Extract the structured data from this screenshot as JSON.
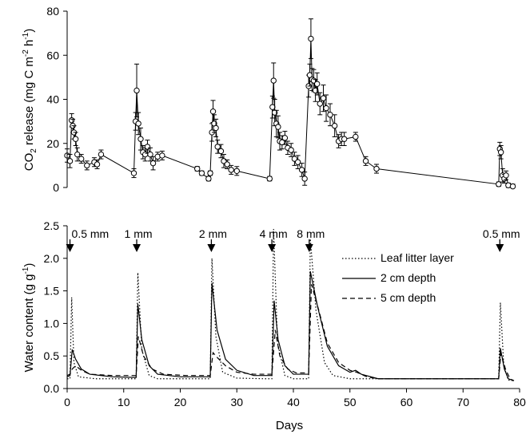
{
  "chart_data": [
    {
      "type": "line",
      "ylabel_main": "CO",
      "ylabel_sub": "2",
      "ylabel_rest": " release (mg C m",
      "ylabel_sup1": "-2",
      "ylabel_h": " h",
      "ylabel_sup2": "-1",
      "ylabel_close": ")",
      "xlim": [
        0,
        80
      ],
      "ylim": [
        0,
        80
      ],
      "yticks": [
        "0",
        "20",
        "40",
        "60",
        "80"
      ],
      "series": [
        {
          "marker": "open-circle",
          "points": [
            [
              0.0,
              14.5,
              3
            ],
            [
              0.5,
              12.0,
              3
            ],
            [
              0.8,
              30.5,
              3
            ],
            [
              1.0,
              28.0,
              3
            ],
            [
              1.2,
              25.0,
              3
            ],
            [
              1.5,
              22.0,
              3
            ],
            [
              1.8,
              15.0,
              3
            ],
            [
              2.5,
              13.0,
              2
            ],
            [
              3.5,
              10.0,
              2
            ],
            [
              4.8,
              11.5,
              2
            ],
            [
              5.3,
              10.5,
              2
            ],
            [
              6.0,
              15.0,
              2
            ],
            [
              11.8,
              6.5,
              2
            ],
            [
              12.1,
              30.0,
              4
            ],
            [
              12.3,
              44.0,
              12
            ],
            [
              12.6,
              29.0,
              5
            ],
            [
              13.0,
              22.0,
              5
            ],
            [
              13.4,
              16.0,
              3
            ],
            [
              13.8,
              15.0,
              3
            ],
            [
              14.2,
              18.5,
              3
            ],
            [
              14.7,
              15.0,
              3
            ],
            [
              15.2,
              11.0,
              3
            ],
            [
              16.0,
              14.0,
              2
            ],
            [
              16.8,
              14.5,
              2
            ],
            [
              23.0,
              8.5,
              1
            ],
            [
              23.8,
              6.5,
              1
            ],
            [
              25.0,
              4.0,
              1
            ],
            [
              25.3,
              6.5,
              1
            ],
            [
              25.6,
              25.0,
              4
            ],
            [
              25.8,
              34.5,
              5
            ],
            [
              26.0,
              29.0,
              4
            ],
            [
              26.3,
              27.0,
              4
            ],
            [
              26.6,
              18.5,
              3
            ],
            [
              27.2,
              16.5,
              3
            ],
            [
              27.7,
              12.0,
              3
            ],
            [
              28.3,
              10.5,
              2
            ],
            [
              29.0,
              8.0,
              2
            ],
            [
              30.0,
              7.5,
              2
            ],
            [
              35.8,
              4.0,
              1
            ],
            [
              36.3,
              36.5,
              5
            ],
            [
              36.5,
              48.5,
              8
            ],
            [
              36.7,
              34.0,
              6
            ],
            [
              37.0,
              29.0,
              6
            ],
            [
              37.3,
              27.5,
              5
            ],
            [
              37.6,
              21.0,
              4
            ],
            [
              38.0,
              20.5,
              3
            ],
            [
              38.5,
              22.5,
              3
            ],
            [
              39.0,
              18.0,
              3
            ],
            [
              39.6,
              17.0,
              3
            ],
            [
              40.2,
              13.0,
              3
            ],
            [
              40.8,
              11.5,
              3
            ],
            [
              41.5,
              8.0,
              3
            ],
            [
              42.0,
              4.0,
              3
            ],
            [
              42.7,
              46.0,
              5
            ],
            [
              42.9,
              51.0,
              5
            ],
            [
              43.1,
              67.5,
              9
            ],
            [
              43.3,
              49.0,
              5
            ],
            [
              43.6,
              48.5,
              5
            ],
            [
              43.9,
              44.0,
              5
            ],
            [
              44.2,
              47.0,
              5
            ],
            [
              44.7,
              38.0,
              5
            ],
            [
              45.3,
              40.5,
              6
            ],
            [
              45.8,
              36.0,
              6
            ],
            [
              46.5,
              33.0,
              5
            ],
            [
              47.3,
              28.0,
              5
            ],
            [
              48.0,
              21.0,
              3
            ],
            [
              48.5,
              22.0,
              3
            ],
            [
              49.0,
              22.0,
              3
            ],
            [
              51.0,
              23.0,
              2
            ],
            [
              52.8,
              12.0,
              2
            ],
            [
              54.7,
              8.5,
              2
            ],
            [
              76.3,
              1.5,
              1
            ],
            [
              76.5,
              17.5,
              3
            ],
            [
              76.7,
              16.0,
              3
            ],
            [
              77.0,
              5.5,
              3
            ],
            [
              77.3,
              4.0,
              2
            ],
            [
              77.6,
              5.5,
              2
            ],
            [
              78.0,
              1.0,
              1
            ],
            [
              78.8,
              0.5,
              1
            ]
          ]
        }
      ]
    },
    {
      "type": "line",
      "ylabel_main": "Water content (g g",
      "ylabel_sup": "-1",
      "ylabel_close": ")",
      "xlabel": "Days",
      "xlim": [
        0,
        80
      ],
      "ylim": [
        0,
        2.5
      ],
      "xticks": [
        "0",
        "10",
        "20",
        "30",
        "40",
        "50",
        "60",
        "70",
        "80"
      ],
      "yticks": [
        "0.0",
        "0.5",
        "1.0",
        "1.5",
        "2.0",
        "2.5"
      ],
      "legend_position": "right",
      "series": [
        {
          "name": "Leaf litter layer",
          "style": "dotted",
          "points": [
            [
              0,
              0.15
            ],
            [
              0.5,
              0.15
            ],
            [
              0.8,
              1.4
            ],
            [
              1.2,
              0.4
            ],
            [
              2.0,
              0.18
            ],
            [
              5,
              0.15
            ],
            [
              10,
              0.15
            ],
            [
              12.2,
              0.15
            ],
            [
              12.5,
              1.78
            ],
            [
              13.2,
              0.6
            ],
            [
              14.5,
              0.2
            ],
            [
              16,
              0.15
            ],
            [
              25.3,
              0.15
            ],
            [
              25.6,
              2.0
            ],
            [
              26.3,
              0.8
            ],
            [
              27.5,
              0.25
            ],
            [
              30,
              0.16
            ],
            [
              35,
              0.15
            ],
            [
              36.2,
              0.15
            ],
            [
              36.5,
              2.45
            ],
            [
              37.2,
              0.7
            ],
            [
              38.5,
              0.2
            ],
            [
              40,
              0.15
            ],
            [
              42.7,
              0.15
            ],
            [
              43.0,
              2.3
            ],
            [
              44.0,
              1.2
            ],
            [
              45.5,
              0.4
            ],
            [
              47,
              0.2
            ],
            [
              50,
              0.15
            ],
            [
              76.3,
              0.15
            ],
            [
              76.6,
              1.32
            ],
            [
              77.2,
              0.35
            ],
            [
              78,
              0.13
            ],
            [
              79,
              0.12
            ]
          ]
        },
        {
          "name": "2 cm depth",
          "style": "solid",
          "points": [
            [
              0,
              0.18
            ],
            [
              0.5,
              0.2
            ],
            [
              0.9,
              0.6
            ],
            [
              1.5,
              0.45
            ],
            [
              2.5,
              0.3
            ],
            [
              4,
              0.22
            ],
            [
              8,
              0.18
            ],
            [
              12.2,
              0.17
            ],
            [
              12.5,
              1.3
            ],
            [
              13.2,
              0.75
            ],
            [
              14.5,
              0.35
            ],
            [
              16,
              0.22
            ],
            [
              20,
              0.18
            ],
            [
              25.3,
              0.18
            ],
            [
              25.6,
              1.62
            ],
            [
              26.5,
              0.9
            ],
            [
              28,
              0.45
            ],
            [
              30,
              0.28
            ],
            [
              33,
              0.2
            ],
            [
              36.2,
              0.2
            ],
            [
              36.6,
              1.35
            ],
            [
              37.3,
              0.75
            ],
            [
              38.5,
              0.35
            ],
            [
              40,
              0.22
            ],
            [
              42.7,
              0.22
            ],
            [
              43.0,
              1.8
            ],
            [
              44.3,
              1.25
            ],
            [
              46,
              0.65
            ],
            [
              48,
              0.35
            ],
            [
              50,
              0.25
            ],
            [
              51,
              0.28
            ],
            [
              52,
              0.22
            ],
            [
              55,
              0.15
            ],
            [
              76.3,
              0.15
            ],
            [
              76.6,
              0.62
            ],
            [
              77.3,
              0.3
            ],
            [
              78,
              0.15
            ],
            [
              79,
              0.12
            ]
          ]
        },
        {
          "name": "5 cm depth",
          "style": "dashed",
          "points": [
            [
              0,
              0.2
            ],
            [
              0.5,
              0.22
            ],
            [
              0.9,
              0.3
            ],
            [
              1.5,
              0.35
            ],
            [
              2.5,
              0.28
            ],
            [
              4,
              0.22
            ],
            [
              8,
              0.2
            ],
            [
              12.2,
              0.2
            ],
            [
              12.6,
              0.8
            ],
            [
              13.5,
              0.5
            ],
            [
              15,
              0.3
            ],
            [
              17,
              0.22
            ],
            [
              21,
              0.2
            ],
            [
              25.3,
              0.2
            ],
            [
              25.8,
              0.55
            ],
            [
              26.5,
              0.48
            ],
            [
              28,
              0.35
            ],
            [
              30,
              0.25
            ],
            [
              33,
              0.22
            ],
            [
              36.2,
              0.22
            ],
            [
              36.8,
              0.9
            ],
            [
              37.6,
              0.5
            ],
            [
              39,
              0.3
            ],
            [
              40.5,
              0.24
            ],
            [
              42.7,
              0.24
            ],
            [
              43.2,
              1.6
            ],
            [
              44.5,
              1.2
            ],
            [
              46,
              0.7
            ],
            [
              48,
              0.4
            ],
            [
              50,
              0.28
            ],
            [
              51.2,
              0.25
            ],
            [
              53,
              0.18
            ],
            [
              55,
              0.15
            ],
            [
              76.3,
              0.15
            ],
            [
              76.7,
              0.55
            ],
            [
              77.5,
              0.3
            ],
            [
              78.3,
              0.15
            ],
            [
              79,
              0.12
            ]
          ]
        }
      ],
      "events": [
        {
          "day": 0.5,
          "label": "0.5 mm"
        },
        {
          "day": 12.3,
          "label": "1 mm"
        },
        {
          "day": 25.5,
          "label": "2 mm"
        },
        {
          "day": 36.2,
          "label": "4 mm"
        },
        {
          "day": 42.8,
          "label": "8 mm"
        },
        {
          "day": 76.5,
          "label": "0.5 mm"
        }
      ]
    }
  ]
}
